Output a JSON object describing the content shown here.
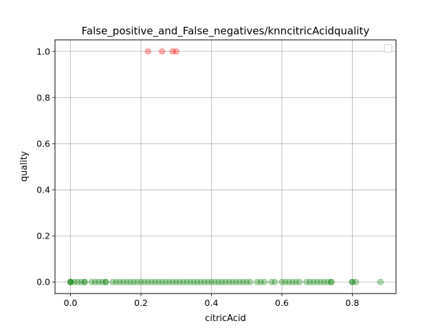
{
  "chart_data": {
    "type": "scatter",
    "title": "False_positive_and_False_negatives/knncitricAcidquality",
    "xlabel": "citricAcid",
    "ylabel": "quality",
    "xlim": [
      -0.044,
      0.924
    ],
    "ylim": [
      -0.05,
      1.05
    ],
    "x_ticks": [
      0.0,
      0.2,
      0.4,
      0.6,
      0.8
    ],
    "x_tick_labels": [
      "0.0",
      "0.2",
      "0.4",
      "0.6",
      "0.8"
    ],
    "y_ticks": [
      0.0,
      0.2,
      0.4,
      0.6,
      0.8,
      1.0
    ],
    "y_tick_labels": [
      "0.0",
      "0.2",
      "0.4",
      "0.6",
      "0.8",
      "1.0"
    ],
    "grid": true,
    "legend": {
      "placement": "top-right",
      "entries": []
    },
    "series": [
      {
        "color": "#ff0000",
        "alpha": 0.3,
        "points": [
          {
            "x": 0.22,
            "y": 1
          },
          {
            "x": 0.26,
            "y": 1
          },
          {
            "x": 0.29,
            "y": 1
          },
          {
            "x": 0.3,
            "y": 1
          }
        ]
      },
      {
        "color": "#008000",
        "alpha": 0.3,
        "points": [
          {
            "x": 0.0,
            "y": 0
          },
          {
            "x": 0.0,
            "y": 0
          },
          {
            "x": 0.0,
            "y": 0
          },
          {
            "x": 0.01,
            "y": 0
          },
          {
            "x": 0.02,
            "y": 0
          },
          {
            "x": 0.03,
            "y": 0
          },
          {
            "x": 0.04,
            "y": 0
          },
          {
            "x": 0.04,
            "y": 0
          },
          {
            "x": 0.06,
            "y": 0
          },
          {
            "x": 0.07,
            "y": 0
          },
          {
            "x": 0.08,
            "y": 0
          },
          {
            "x": 0.09,
            "y": 0
          },
          {
            "x": 0.1,
            "y": 0
          },
          {
            "x": 0.1,
            "y": 0
          },
          {
            "x": 0.12,
            "y": 0
          },
          {
            "x": 0.13,
            "y": 0
          },
          {
            "x": 0.14,
            "y": 0
          },
          {
            "x": 0.15,
            "y": 0
          },
          {
            "x": 0.16,
            "y": 0
          },
          {
            "x": 0.17,
            "y": 0
          },
          {
            "x": 0.18,
            "y": 0
          },
          {
            "x": 0.19,
            "y": 0
          },
          {
            "x": 0.2,
            "y": 0
          },
          {
            "x": 0.21,
            "y": 0
          },
          {
            "x": 0.22,
            "y": 0
          },
          {
            "x": 0.23,
            "y": 0
          },
          {
            "x": 0.24,
            "y": 0
          },
          {
            "x": 0.25,
            "y": 0
          },
          {
            "x": 0.26,
            "y": 0
          },
          {
            "x": 0.27,
            "y": 0
          },
          {
            "x": 0.28,
            "y": 0
          },
          {
            "x": 0.29,
            "y": 0
          },
          {
            "x": 0.3,
            "y": 0
          },
          {
            "x": 0.31,
            "y": 0
          },
          {
            "x": 0.32,
            "y": 0
          },
          {
            "x": 0.33,
            "y": 0
          },
          {
            "x": 0.34,
            "y": 0
          },
          {
            "x": 0.35,
            "y": 0
          },
          {
            "x": 0.36,
            "y": 0
          },
          {
            "x": 0.37,
            "y": 0
          },
          {
            "x": 0.38,
            "y": 0
          },
          {
            "x": 0.39,
            "y": 0
          },
          {
            "x": 0.4,
            "y": 0
          },
          {
            "x": 0.41,
            "y": 0
          },
          {
            "x": 0.42,
            "y": 0
          },
          {
            "x": 0.43,
            "y": 0
          },
          {
            "x": 0.44,
            "y": 0
          },
          {
            "x": 0.45,
            "y": 0
          },
          {
            "x": 0.46,
            "y": 0
          },
          {
            "x": 0.47,
            "y": 0
          },
          {
            "x": 0.48,
            "y": 0
          },
          {
            "x": 0.49,
            "y": 0
          },
          {
            "x": 0.5,
            "y": 0
          },
          {
            "x": 0.51,
            "y": 0
          },
          {
            "x": 0.53,
            "y": 0
          },
          {
            "x": 0.54,
            "y": 0
          },
          {
            "x": 0.55,
            "y": 0
          },
          {
            "x": 0.57,
            "y": 0
          },
          {
            "x": 0.58,
            "y": 0
          },
          {
            "x": 0.6,
            "y": 0
          },
          {
            "x": 0.61,
            "y": 0
          },
          {
            "x": 0.62,
            "y": 0
          },
          {
            "x": 0.63,
            "y": 0
          },
          {
            "x": 0.64,
            "y": 0
          },
          {
            "x": 0.65,
            "y": 0
          },
          {
            "x": 0.67,
            "y": 0
          },
          {
            "x": 0.68,
            "y": 0
          },
          {
            "x": 0.69,
            "y": 0
          },
          {
            "x": 0.7,
            "y": 0
          },
          {
            "x": 0.71,
            "y": 0
          },
          {
            "x": 0.72,
            "y": 0
          },
          {
            "x": 0.73,
            "y": 0
          },
          {
            "x": 0.74,
            "y": 0
          },
          {
            "x": 0.74,
            "y": 0
          },
          {
            "x": 0.8,
            "y": 0
          },
          {
            "x": 0.8,
            "y": 0
          },
          {
            "x": 0.81,
            "y": 0
          },
          {
            "x": 0.88,
            "y": 0
          }
        ]
      }
    ]
  }
}
